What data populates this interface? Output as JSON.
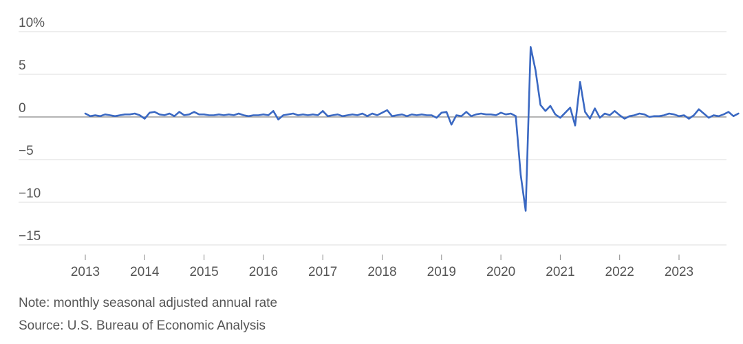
{
  "chart_data": {
    "type": "line",
    "title": "",
    "xlabel": "",
    "ylabel": "",
    "y_unit_suffix": "%",
    "ylim": [
      -16,
      10
    ],
    "y_ticks": [
      {
        "value": 10,
        "label": "10%"
      },
      {
        "value": 5,
        "label": "5"
      },
      {
        "value": 0,
        "label": "0"
      },
      {
        "value": -5,
        "label": "−5"
      },
      {
        "value": -10,
        "label": "−10"
      },
      {
        "value": -15,
        "label": "−15"
      }
    ],
    "x_ticks": [
      "2013",
      "2014",
      "2015",
      "2016",
      "2017",
      "2018",
      "2019",
      "2020",
      "2021",
      "2022",
      "2023"
    ],
    "x_start": "2013-01",
    "grid": true,
    "legend": "none",
    "colors": {
      "line": "#3a68c2",
      "grid": "#dddddd",
      "zero_line": "#888888",
      "axis_tick": "#888888"
    },
    "series": [
      {
        "name": "",
        "values": [
          0.4,
          0.1,
          0.2,
          0.1,
          0.3,
          0.2,
          0.1,
          0.2,
          0.3,
          0.3,
          0.4,
          0.2,
          -0.2,
          0.5,
          0.6,
          0.3,
          0.2,
          0.4,
          0.1,
          0.6,
          0.2,
          0.3,
          0.6,
          0.3,
          0.3,
          0.2,
          0.2,
          0.3,
          0.2,
          0.3,
          0.2,
          0.4,
          0.2,
          0.1,
          0.2,
          0.2,
          0.3,
          0.2,
          0.7,
          -0.3,
          0.2,
          0.3,
          0.4,
          0.2,
          0.3,
          0.2,
          0.3,
          0.2,
          0.7,
          0.1,
          0.2,
          0.3,
          0.1,
          0.2,
          0.3,
          0.2,
          0.4,
          0.1,
          0.4,
          0.2,
          0.5,
          0.8,
          0.1,
          0.2,
          0.3,
          0.1,
          0.3,
          0.2,
          0.3,
          0.2,
          0.2,
          -0.1,
          0.5,
          0.6,
          -0.9,
          0.2,
          0.1,
          0.6,
          0.1,
          0.3,
          0.4,
          0.3,
          0.3,
          0.2,
          0.5,
          0.3,
          0.4,
          0.1,
          -6.8,
          -11.0,
          8.2,
          5.5,
          1.4,
          0.7,
          1.3,
          0.3,
          -0.1,
          0.5,
          1.1,
          -1.0,
          4.1,
          0.6,
          -0.2,
          1.0,
          -0.1,
          0.4,
          0.2,
          0.7,
          0.2,
          -0.2,
          0.1,
          0.2,
          0.4,
          0.3,
          0.0,
          0.1,
          0.1,
          0.2,
          0.4,
          0.3,
          0.1,
          0.2,
          -0.2,
          0.2,
          0.9,
          0.4,
          -0.1,
          0.2,
          0.1,
          0.3,
          0.6,
          0.1,
          0.4
        ]
      }
    ]
  },
  "footer": {
    "note": "Note: monthly seasonal adjusted annual rate",
    "source": "Source: U.S. Bureau of Economic Analysis"
  }
}
